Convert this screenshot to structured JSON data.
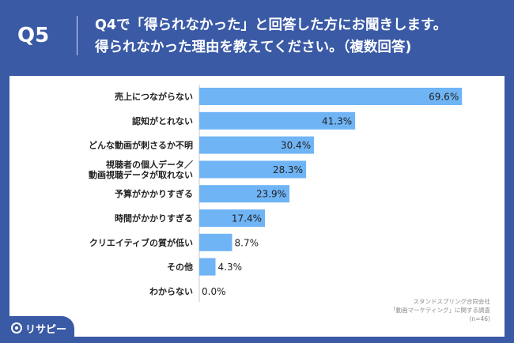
{
  "header": {
    "question_label": "Q5",
    "title_line1": "Q4で「得られなかった」と回答した方にお聞きします。",
    "title_line2": "得られなかった理由を教えてください。（複数回答)"
  },
  "logo": {
    "text": "リサピー"
  },
  "source": {
    "line1": "スタンドスプリング合同会社",
    "line2": "「動画マーケティング」に関する調査",
    "line3": "(n=46)"
  },
  "colors": {
    "background": "#3a5aa6",
    "bar": "#6fb4f5",
    "text": "#222222"
  },
  "chart_data": {
    "type": "bar",
    "orientation": "horizontal",
    "categories": [
      "売上につながらない",
      "認知がとれない",
      "どんな動画が刺さるか不明",
      "視聴者の個人データ／\n動画視聴データが取れない",
      "予算がかかりすぎる",
      "時間がかかりすぎる",
      "クリエイティブの質が低い",
      "その他",
      "わからない"
    ],
    "values": [
      69.6,
      41.3,
      30.4,
      28.3,
      23.9,
      17.4,
      8.7,
      4.3,
      0.0
    ],
    "value_labels": [
      "69.6%",
      "41.3%",
      "30.4%",
      "28.3%",
      "23.9%",
      "17.4%",
      "8.7%",
      "4.3%",
      "0.0%"
    ],
    "xlim": [
      0,
      75
    ],
    "grid": false,
    "legend": "none"
  }
}
